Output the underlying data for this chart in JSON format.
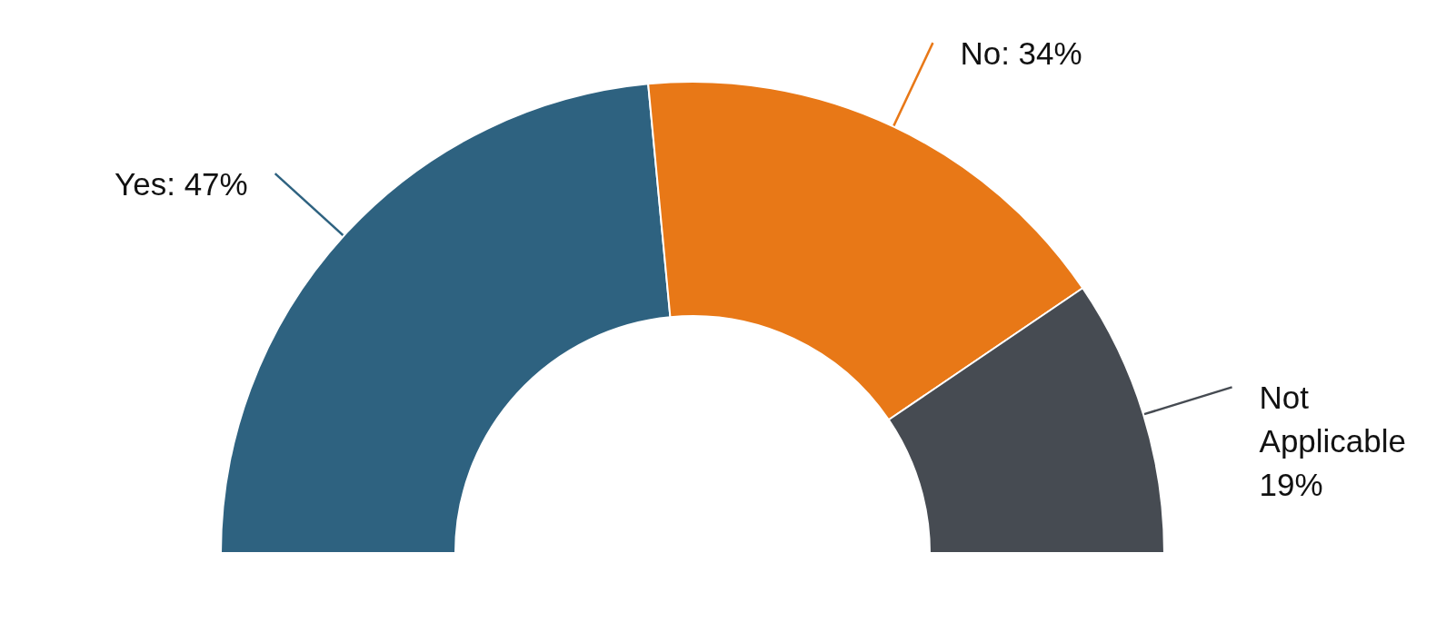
{
  "chart_data": {
    "type": "donut",
    "categories": [
      "Yes",
      "No",
      "Not Applicable"
    ],
    "values": [
      47,
      34,
      19
    ],
    "colors": [
      "#2e6280",
      "#e87817",
      "#464b52"
    ],
    "value_labels": [
      "47%",
      "34%",
      "19%"
    ]
  }
}
